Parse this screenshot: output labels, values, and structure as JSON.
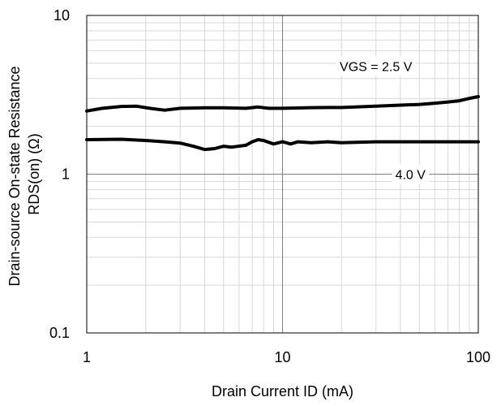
{
  "chart_data": {
    "type": "line",
    "xlabel": "Drain Current ID (mA)",
    "ylabel_lines": [
      "Drain-source On-state Resistance",
      "RDS(on) (Ω)"
    ],
    "x_scale": "log",
    "y_scale": "log",
    "xlim": [
      1,
      100
    ],
    "ylim": [
      0.1,
      10
    ],
    "x_ticks": [
      1,
      10,
      100
    ],
    "x_tick_labels": [
      "1",
      "10",
      "100"
    ],
    "y_ticks": [
      0.1,
      1,
      10
    ],
    "y_tick_labels": [
      "0.1",
      "1",
      "10"
    ],
    "grid": true,
    "series": [
      {
        "label": "VGS = 2.5 V",
        "label_at": [
          30,
          4.8
        ],
        "color": "#000000",
        "points": [
          [
            1,
            2.5
          ],
          [
            1.2,
            2.6
          ],
          [
            1.5,
            2.67
          ],
          [
            1.8,
            2.68
          ],
          [
            2.1,
            2.6
          ],
          [
            2.5,
            2.53
          ],
          [
            3,
            2.6
          ],
          [
            4,
            2.62
          ],
          [
            5,
            2.62
          ],
          [
            6.5,
            2.6
          ],
          [
            7.5,
            2.65
          ],
          [
            8.5,
            2.6
          ],
          [
            10,
            2.6
          ],
          [
            13,
            2.62
          ],
          [
            17,
            2.63
          ],
          [
            20,
            2.63
          ],
          [
            30,
            2.68
          ],
          [
            40,
            2.72
          ],
          [
            50,
            2.75
          ],
          [
            60,
            2.8
          ],
          [
            70,
            2.85
          ],
          [
            80,
            2.9
          ],
          [
            90,
            3.0
          ],
          [
            100,
            3.08
          ]
        ]
      },
      {
        "label": "4.0 V",
        "label_at": [
          45,
          1.0
        ],
        "color": "#000000",
        "points": [
          [
            1,
            1.65
          ],
          [
            1.5,
            1.66
          ],
          [
            2,
            1.63
          ],
          [
            2.5,
            1.6
          ],
          [
            3,
            1.57
          ],
          [
            3.5,
            1.5
          ],
          [
            4,
            1.43
          ],
          [
            4.5,
            1.45
          ],
          [
            5,
            1.5
          ],
          [
            5.5,
            1.48
          ],
          [
            6.5,
            1.52
          ],
          [
            7,
            1.6
          ],
          [
            7.5,
            1.65
          ],
          [
            8,
            1.63
          ],
          [
            9,
            1.55
          ],
          [
            10,
            1.6
          ],
          [
            11,
            1.55
          ],
          [
            12,
            1.6
          ],
          [
            14,
            1.58
          ],
          [
            17,
            1.6
          ],
          [
            20,
            1.58
          ],
          [
            30,
            1.6
          ],
          [
            40,
            1.6
          ],
          [
            50,
            1.6
          ],
          [
            70,
            1.6
          ],
          [
            100,
            1.6
          ]
        ]
      }
    ]
  }
}
